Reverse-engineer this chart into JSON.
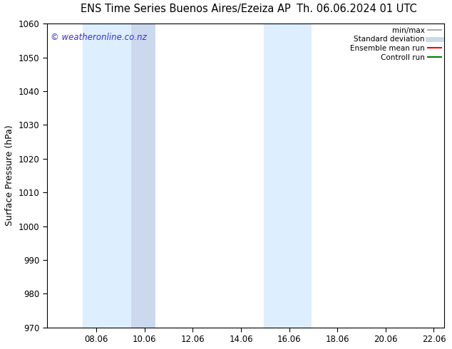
{
  "title_left": "ENS Time Series Buenos Aires/Ezeiza AP",
  "title_right": "Th. 06.06.2024 01 UTC",
  "ylabel": "Surface Pressure (hPa)",
  "ylim": [
    970,
    1060
  ],
  "yticks": [
    970,
    980,
    990,
    1000,
    1010,
    1020,
    1030,
    1040,
    1050,
    1060
  ],
  "xlim_start": 6.0,
  "xlim_end": 22.5,
  "xticks": [
    8.06,
    10.06,
    12.06,
    14.06,
    16.06,
    18.06,
    20.06,
    22.06
  ],
  "xtick_labels": [
    "08.06",
    "10.06",
    "12.06",
    "14.06",
    "16.06",
    "18.06",
    "20.06",
    "22.06"
  ],
  "shaded_bands": [
    {
      "x_start": 7.5,
      "x_end": 9.5,
      "color": "#ddeeff"
    },
    {
      "x_start": 9.5,
      "x_end": 10.5,
      "color": "#ccd8ee"
    },
    {
      "x_start": 15.0,
      "x_end": 15.8,
      "color": "#ddeeff"
    },
    {
      "x_start": 15.8,
      "x_end": 17.0,
      "color": "#ddeeff"
    }
  ],
  "watermark": "© weatheronline.co.nz",
  "watermark_color": "#3333cc",
  "bg_color": "#ffffff",
  "plot_bg_color": "#ffffff",
  "legend_items": [
    {
      "label": "min/max",
      "color": "#999999",
      "lw": 1.2
    },
    {
      "label": "Standard deviation",
      "color": "#c8daea",
      "lw": 5
    },
    {
      "label": "Ensemble mean run",
      "color": "#ff0000",
      "lw": 1.5
    },
    {
      "label": "Controll run",
      "color": "#008000",
      "lw": 1.5
    }
  ],
  "title_fontsize": 10.5,
  "tick_fontsize": 8.5,
  "label_fontsize": 9,
  "watermark_fontsize": 8.5
}
